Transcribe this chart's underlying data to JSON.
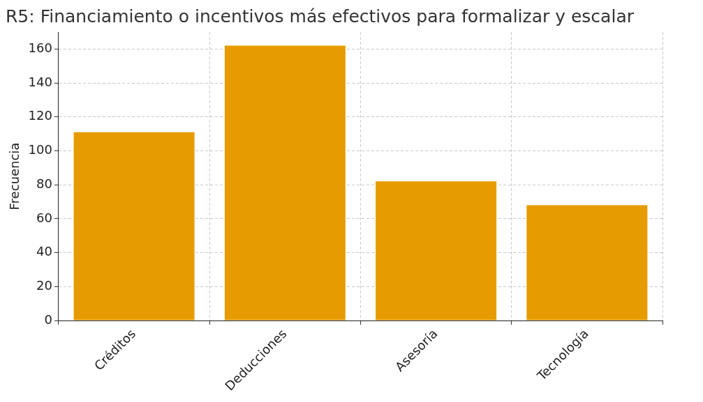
{
  "chart_data": {
    "type": "bar",
    "title": "R5: Financiamiento o incentivos más efectivos para formalizar y escalar",
    "ylabel": "Frecuencia",
    "categories": [
      "Créditos",
      "Deducciones",
      "Asesoría",
      "Tecnología"
    ],
    "values": [
      111,
      162,
      82,
      68
    ],
    "color": "#e69c00",
    "ylim": [
      0,
      170
    ],
    "yticks": [
      0,
      20,
      40,
      60,
      80,
      100,
      120,
      140,
      160
    ],
    "grid": true
  }
}
